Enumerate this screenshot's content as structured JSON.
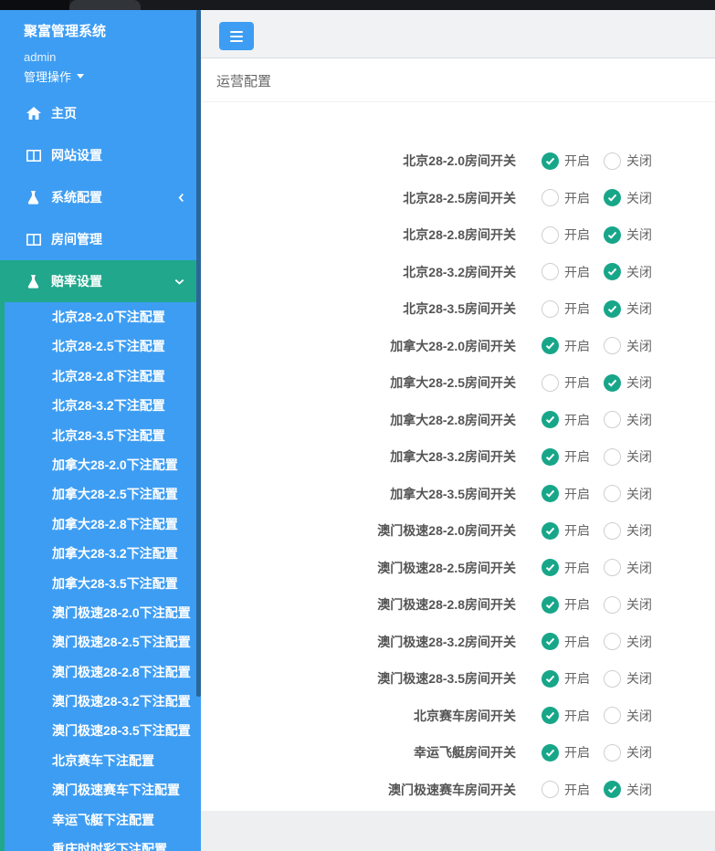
{
  "sidebar": {
    "brand": "聚富管理系统",
    "username": "admin",
    "user_action": "管理操作",
    "menu": [
      {
        "id": "home",
        "label": "主页",
        "icon": "home-icon"
      },
      {
        "id": "site-settings",
        "label": "网站设置",
        "icon": "columns-icon"
      },
      {
        "id": "system-config",
        "label": "系统配置",
        "icon": "flask-icon",
        "chevron": "left"
      },
      {
        "id": "room-management",
        "label": "房间管理",
        "icon": "columns-icon"
      },
      {
        "id": "odds-settings",
        "label": "赔率设置",
        "icon": "flask-icon",
        "chevron": "down",
        "active": true
      }
    ],
    "submenu": [
      "北京28-2.0下注配置",
      "北京28-2.5下注配置",
      "北京28-2.8下注配置",
      "北京28-3.2下注配置",
      "北京28-3.5下注配置",
      "加拿大28-2.0下注配置",
      "加拿大28-2.5下注配置",
      "加拿大28-2.8下注配置",
      "加拿大28-3.2下注配置",
      "加拿大28-3.5下注配置",
      "澳门极速28-2.0下注配置",
      "澳门极速28-2.5下注配置",
      "澳门极速28-2.8下注配置",
      "澳门极速28-3.2下注配置",
      "澳门极速28-3.5下注配置",
      "北京赛车下注配置",
      "澳门极速赛车下注配置",
      "幸运飞艇下注配置",
      "重庆时时彩下注配置"
    ]
  },
  "header": {
    "menu_toggle_icon": "hamburger-icon"
  },
  "page": {
    "title": "运营配置"
  },
  "form": {
    "on_label": "开启",
    "off_label": "关闭",
    "rows": [
      {
        "label": "北京28-2.0房间开关",
        "state": "on"
      },
      {
        "label": "北京28-2.5房间开关",
        "state": "off"
      },
      {
        "label": "北京28-2.8房间开关",
        "state": "off"
      },
      {
        "label": "北京28-3.2房间开关",
        "state": "off"
      },
      {
        "label": "北京28-3.5房间开关",
        "state": "off"
      },
      {
        "label": "加拿大28-2.0房间开关",
        "state": "on"
      },
      {
        "label": "加拿大28-2.5房间开关",
        "state": "off"
      },
      {
        "label": "加拿大28-2.8房间开关",
        "state": "on"
      },
      {
        "label": "加拿大28-3.2房间开关",
        "state": "on"
      },
      {
        "label": "加拿大28-3.5房间开关",
        "state": "on"
      },
      {
        "label": "澳门极速28-2.0房间开关",
        "state": "on"
      },
      {
        "label": "澳门极速28-2.5房间开关",
        "state": "on"
      },
      {
        "label": "澳门极速28-2.8房间开关",
        "state": "on"
      },
      {
        "label": "澳门极速28-3.2房间开关",
        "state": "on"
      },
      {
        "label": "澳门极速28-3.5房间开关",
        "state": "on"
      },
      {
        "label": "北京赛车房间开关",
        "state": "on"
      },
      {
        "label": "幸运飞艇房间开关",
        "state": "on"
      },
      {
        "label": "澳门极速赛车房间开关",
        "state": "off"
      }
    ]
  },
  "colors": {
    "sidebar_blue": "#3d9df3",
    "active_green": "#21a78c",
    "radio_checked_green": "#18a689",
    "scrollbar_navy": "#2b6699",
    "button_blue": "#3d9df3",
    "topbar_dark": "#17191d"
  }
}
